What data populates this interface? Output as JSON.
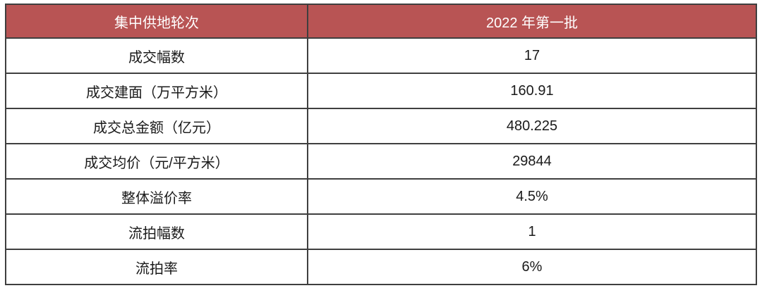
{
  "table": {
    "header": {
      "round_label": "集中供地轮次",
      "batch_label": "2022 年第一批"
    },
    "rows": [
      {
        "label": "成交幅数",
        "value": "17"
      },
      {
        "label": "成交建面（万平方米）",
        "value": "160.91"
      },
      {
        "label": "成交总金额（亿元）",
        "value": "480.225"
      },
      {
        "label": "成交均价（元/平方米）",
        "value": "29844"
      },
      {
        "label": "整体溢价率",
        "value": "4.5%"
      },
      {
        "label": "流拍幅数",
        "value": "1"
      },
      {
        "label": "流拍率",
        "value": "6%"
      }
    ]
  },
  "colors": {
    "header_bg": "#B85454",
    "header_text": "#FFFFFF",
    "border": "#3F3F3F",
    "body_text": "#1A1A1A"
  },
  "chart_data": {
    "type": "table",
    "title": "",
    "columns": [
      "集中供地轮次",
      "2022 年第一批"
    ],
    "rows": [
      [
        "成交幅数",
        "17"
      ],
      [
        "成交建面（万平方米）",
        "160.91"
      ],
      [
        "成交总金额（亿元）",
        "480.225"
      ],
      [
        "成交均价（元/平方米）",
        "29844"
      ],
      [
        "整体溢价率",
        "4.5%"
      ],
      [
        "流拍幅数",
        "1"
      ],
      [
        "流拍率",
        "6%"
      ]
    ]
  }
}
